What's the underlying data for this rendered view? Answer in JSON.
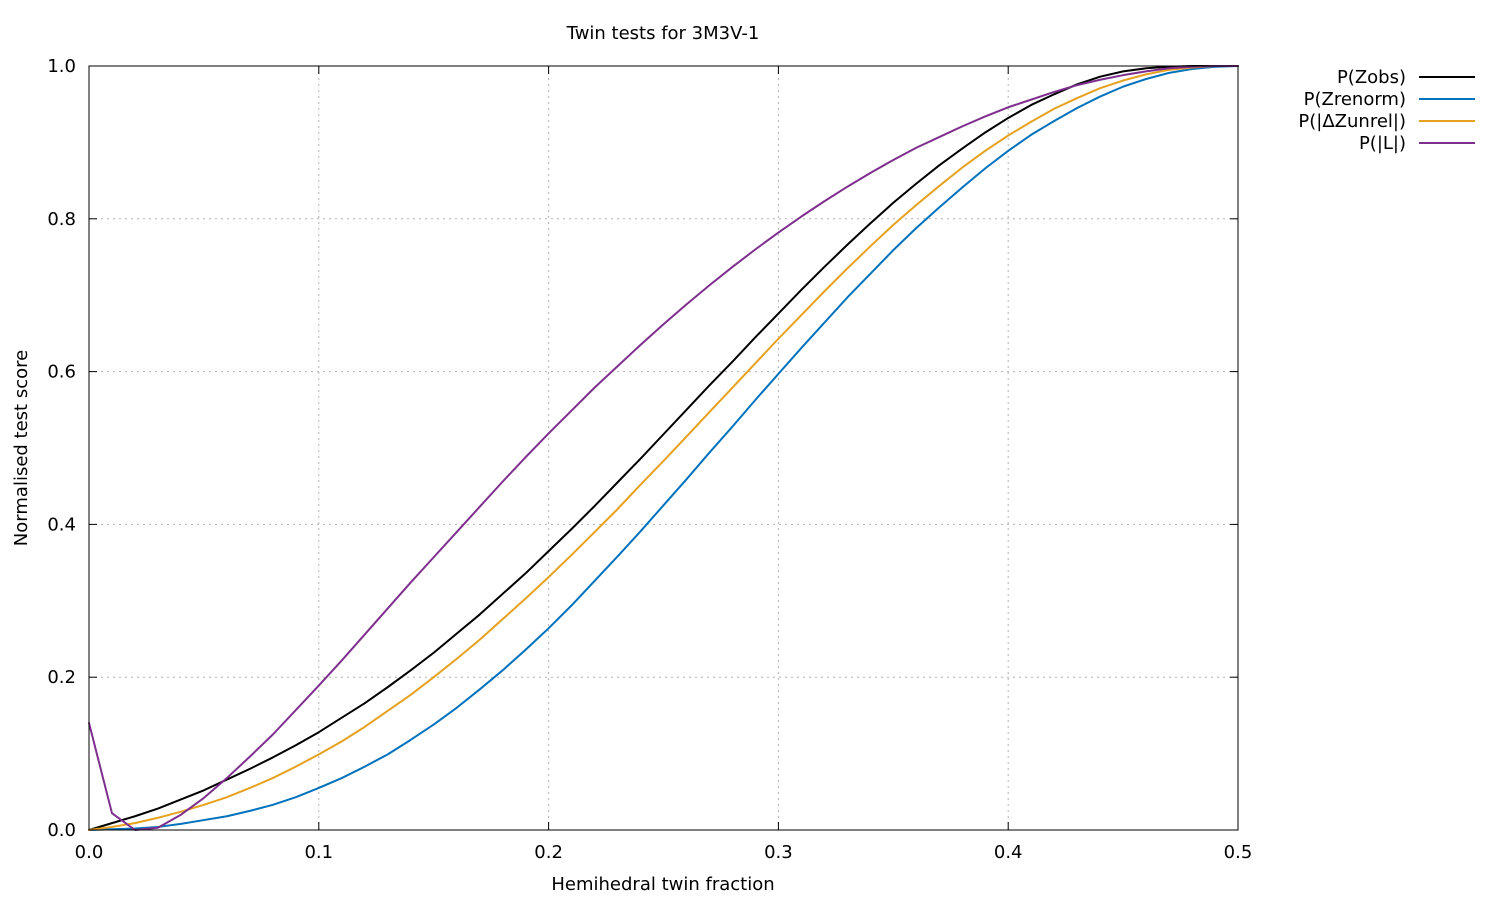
{
  "chart_data": {
    "type": "line",
    "title": "Twin tests for 3M3V-1",
    "xlabel": "Hemihedral twin fraction",
    "ylabel": "Normalised test score",
    "xlim": [
      0.0,
      0.5
    ],
    "ylim": [
      0.0,
      1.0
    ],
    "xticks": [
      "0.0",
      "0.1",
      "0.2",
      "0.3",
      "0.4",
      "0.5"
    ],
    "yticks": [
      "0.0",
      "0.2",
      "0.4",
      "0.6",
      "0.8",
      "1.0"
    ],
    "grid": true,
    "legend_position": "outside-top-right",
    "x": [
      0.0,
      0.01,
      0.02,
      0.03,
      0.04,
      0.05,
      0.06,
      0.07,
      0.08,
      0.09,
      0.1,
      0.11,
      0.12,
      0.13,
      0.14,
      0.15,
      0.16,
      0.17,
      0.18,
      0.19,
      0.2,
      0.21,
      0.22,
      0.23,
      0.24,
      0.25,
      0.26,
      0.27,
      0.28,
      0.29,
      0.3,
      0.31,
      0.32,
      0.33,
      0.34,
      0.35,
      0.36,
      0.37,
      0.38,
      0.39,
      0.4,
      0.41,
      0.42,
      0.43,
      0.44,
      0.45,
      0.46,
      0.47,
      0.48,
      0.49,
      0.5
    ],
    "series": [
      {
        "name": "P(Zobs)",
        "color": "#000000",
        "values": [
          0.0,
          0.009,
          0.018,
          0.028,
          0.04,
          0.052,
          0.066,
          0.08,
          0.095,
          0.111,
          0.128,
          0.147,
          0.166,
          0.187,
          0.209,
          0.232,
          0.257,
          0.282,
          0.309,
          0.336,
          0.365,
          0.394,
          0.424,
          0.455,
          0.486,
          0.518,
          0.55,
          0.582,
          0.613,
          0.645,
          0.676,
          0.707,
          0.737,
          0.766,
          0.794,
          0.821,
          0.846,
          0.87,
          0.892,
          0.913,
          0.932,
          0.949,
          0.963,
          0.976,
          0.986,
          0.993,
          0.997,
          0.999,
          1.0,
          1.0,
          1.0
        ]
      },
      {
        "name": "P(Zrenorm)",
        "color": "#0072bd",
        "values": [
          0.0,
          0.001,
          0.002,
          0.004,
          0.008,
          0.013,
          0.018,
          0.025,
          0.033,
          0.043,
          0.055,
          0.068,
          0.083,
          0.099,
          0.118,
          0.138,
          0.16,
          0.184,
          0.209,
          0.236,
          0.264,
          0.294,
          0.326,
          0.358,
          0.391,
          0.425,
          0.459,
          0.494,
          0.528,
          0.563,
          0.597,
          0.631,
          0.664,
          0.697,
          0.728,
          0.759,
          0.788,
          0.815,
          0.841,
          0.866,
          0.889,
          0.91,
          0.928,
          0.945,
          0.96,
          0.973,
          0.983,
          0.991,
          0.996,
          0.999,
          1.0
        ]
      },
      {
        "name": "P(|ΔZunrel|)",
        "color": "#e6a11f",
        "values": [
          0.0,
          0.004,
          0.009,
          0.016,
          0.024,
          0.033,
          0.043,
          0.055,
          0.068,
          0.083,
          0.099,
          0.116,
          0.135,
          0.156,
          0.177,
          0.2,
          0.224,
          0.249,
          0.276,
          0.303,
          0.331,
          0.36,
          0.39,
          0.42,
          0.452,
          0.483,
          0.515,
          0.547,
          0.579,
          0.611,
          0.643,
          0.674,
          0.705,
          0.735,
          0.764,
          0.792,
          0.818,
          0.843,
          0.867,
          0.889,
          0.909,
          0.927,
          0.944,
          0.958,
          0.971,
          0.981,
          0.989,
          0.995,
          0.998,
          1.0,
          1.0
        ]
      },
      {
        "name": "P(|L|)",
        "color": "#7e2f8e",
        "values": [
          0.14,
          0.022,
          0.0,
          0.003,
          0.02,
          0.042,
          0.068,
          0.096,
          0.125,
          0.157,
          0.189,
          0.222,
          0.256,
          0.29,
          0.324,
          0.357,
          0.39,
          0.423,
          0.456,
          0.488,
          0.519,
          0.549,
          0.579,
          0.607,
          0.635,
          0.662,
          0.688,
          0.713,
          0.737,
          0.76,
          0.782,
          0.803,
          0.823,
          0.842,
          0.86,
          0.877,
          0.893,
          0.907,
          0.921,
          0.934,
          0.946,
          0.956,
          0.966,
          0.975,
          0.982,
          0.988,
          0.993,
          0.997,
          0.999,
          1.0,
          1.0
        ]
      }
    ]
  }
}
